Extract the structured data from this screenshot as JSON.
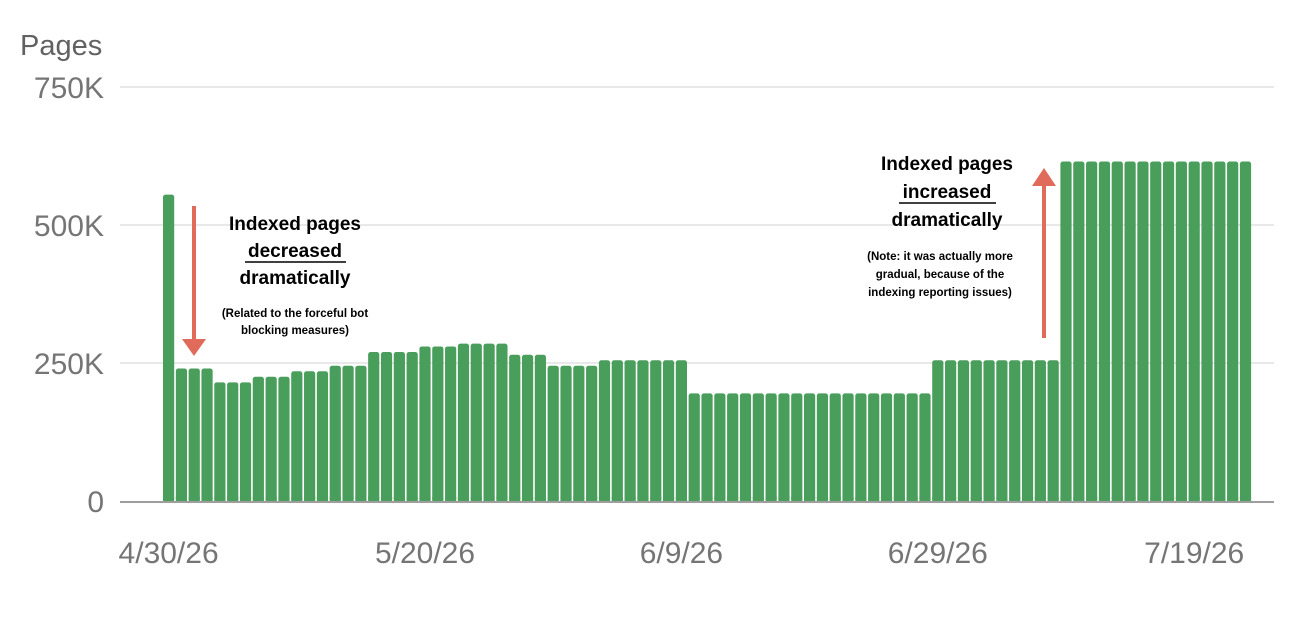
{
  "chart_data": {
    "type": "bar",
    "ylabel": "Pages",
    "ylim": [
      0,
      750000
    ],
    "yticks": [
      0,
      250000,
      500000,
      750000
    ],
    "ytick_labels": [
      "0",
      "250K",
      "500K",
      "750K"
    ],
    "xtick_labels": [
      "4/30/26",
      "5/20/26",
      "6/9/26",
      "6/29/26",
      "7/19/26"
    ],
    "grid": true,
    "colors": {
      "bar": "#4a9e5c",
      "arrow": "#e06b5a",
      "grid": "#e8e8e8",
      "axis": "#9e9e9e"
    },
    "series": [
      {
        "values": [
          555000,
          240000,
          240000,
          240000,
          215000,
          215000,
          215000,
          225000,
          225000,
          225000,
          235000,
          235000,
          235000,
          245000,
          245000,
          245000,
          270000,
          270000,
          270000,
          270000,
          280000,
          280000,
          280000,
          285000,
          285000,
          285000,
          285000,
          265000,
          265000,
          265000,
          245000,
          245000,
          245000,
          245000,
          255000,
          255000,
          255000,
          255000,
          255000,
          255000,
          255000,
          195000,
          195000,
          195000,
          195000,
          195000,
          195000,
          195000,
          195000,
          195000,
          195000,
          195000,
          195000,
          195000,
          195000,
          195000,
          195000,
          195000,
          195000,
          195000,
          255000,
          255000,
          255000,
          255000,
          255000,
          255000,
          255000,
          255000,
          255000,
          255000,
          615000,
          615000,
          615000,
          615000,
          615000,
          615000,
          615000,
          615000,
          615000,
          615000,
          615000,
          615000,
          615000,
          615000,
          615000
        ]
      }
    ],
    "annotations": [
      {
        "id": "decrease",
        "lines": [
          "Indexed pages",
          "decreased",
          "dramatically"
        ],
        "underline_line": 1,
        "note": [
          "(Related to the forceful bot",
          "blocking measures)"
        ]
      },
      {
        "id": "increase",
        "lines": [
          "Indexed pages",
          "increased",
          "dramatically"
        ],
        "underline_line": 1,
        "note": [
          "(Note: it was actually more",
          "gradual, because of the",
          "indexing reporting issues)"
        ]
      }
    ]
  }
}
